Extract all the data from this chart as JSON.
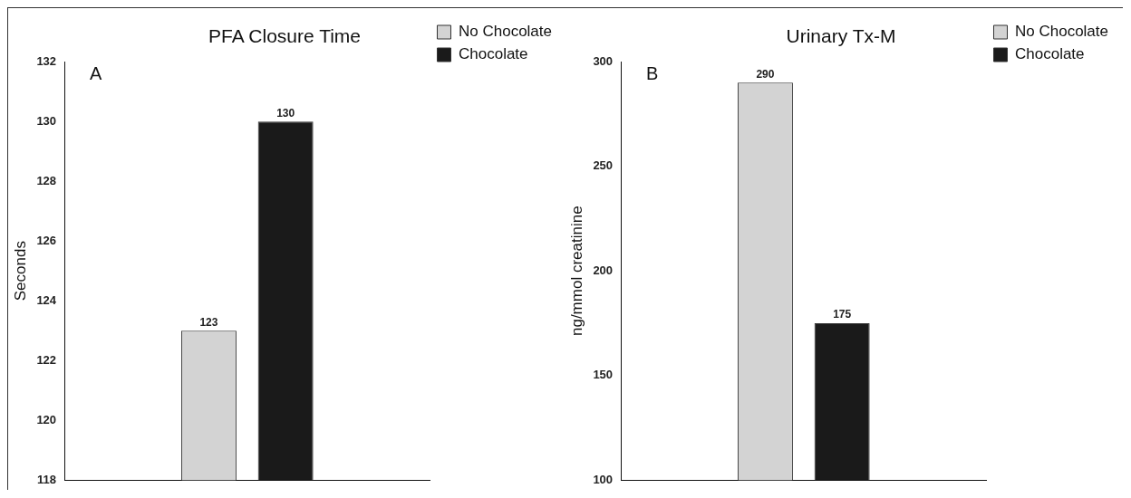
{
  "chart_data": [
    {
      "type": "bar",
      "title": "PFA Closure Time",
      "ylabel": "Seconds",
      "annotations": [
        "A"
      ],
      "categories": [
        null
      ],
      "series": [
        {
          "name": "No Chocolate",
          "color": "#d3d3d3",
          "values": [
            123
          ]
        },
        {
          "name": "Chocolate",
          "color": "#1a1a1a",
          "values": [
            130
          ]
        }
      ],
      "ylim": [
        118,
        132
      ],
      "yticks": [
        118,
        120,
        122,
        124,
        126,
        128,
        130,
        132
      ],
      "grid": false,
      "legend": "right",
      "tick_labels": "y",
      "data_labels": true
    },
    {
      "type": "bar",
      "title": "Urinary Tx-M",
      "ylabel": "ng/mmol creatinine",
      "annotations": [
        "B"
      ],
      "categories": [
        null
      ],
      "series": [
        {
          "name": "No Chocolate",
          "color": "#d3d3d3",
          "values": [
            290
          ]
        },
        {
          "name": "Chocolate",
          "color": "#1a1a1a",
          "values": [
            175
          ]
        }
      ],
      "ylim": [
        100,
        300
      ],
      "yticks": [
        100,
        150,
        200,
        250,
        300
      ],
      "grid": false,
      "legend": "right",
      "tick_labels": "y",
      "data_labels": true
    }
  ]
}
